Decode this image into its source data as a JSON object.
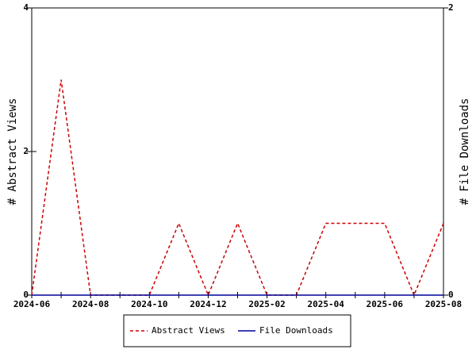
{
  "chart_data": {
    "type": "line",
    "categories": [
      "2024-06",
      null,
      "2024-08",
      null,
      "2024-10",
      null,
      "2024-12",
      null,
      "2025-02",
      null,
      "2025-04",
      null,
      "2025-06",
      null,
      "2025-08"
    ],
    "series": [
      {
        "name": "Abstract Views",
        "color": "#cc0000",
        "line_style": "dashed",
        "axis": "y",
        "values": [
          0,
          3,
          0,
          0,
          0,
          1,
          0,
          1,
          0,
          0,
          1,
          1,
          1,
          0,
          1
        ]
      },
      {
        "name": "File Downloads",
        "color": "#000099",
        "line_style": "solid",
        "axis": "y2",
        "values": [
          0,
          0,
          0,
          0,
          0,
          0,
          0,
          0,
          0,
          0,
          0,
          0,
          0,
          0,
          0
        ]
      }
    ],
    "ylabel": "# Abstract Views",
    "y2label": "# File Downloads",
    "ylim": [
      0,
      4
    ],
    "yticks": [
      0,
      2,
      4
    ],
    "y2lim": [
      0,
      2
    ],
    "y2ticks": [
      0,
      2
    ],
    "grid": false,
    "legend": "bottom"
  }
}
